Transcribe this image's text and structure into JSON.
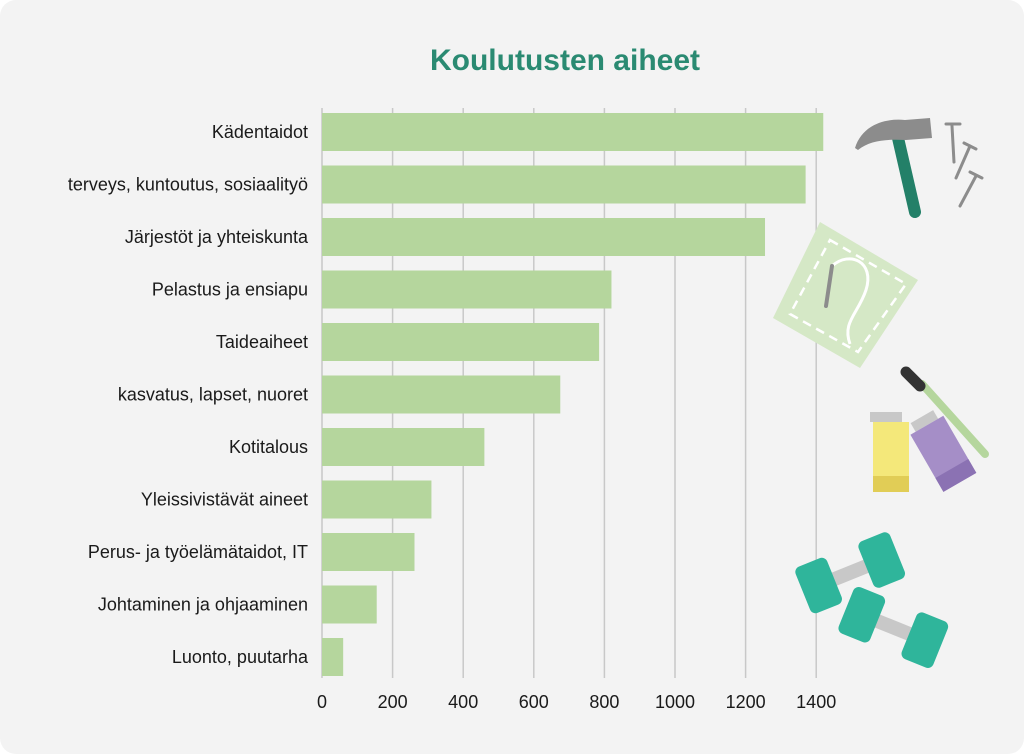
{
  "colors": {
    "background": "#f3f3f3",
    "bar": "#b5d69d",
    "title": "#2a8a72",
    "grid": "#c8c8c8",
    "accent_green": "#2fb59b",
    "hammer_handle": "#238068",
    "hammer_head": "#8c8c8c"
  },
  "decorations": [
    "hammer-icon",
    "nails-icon",
    "fabric-patch-icon",
    "paint-brush-icon",
    "paint-tubes-icon",
    "dumbbells-icon"
  ],
  "chart_data": {
    "type": "bar",
    "orientation": "horizontal",
    "title": "Koulutusten aiheet",
    "categories": [
      "Kädentaidot",
      "terveys, kuntoutus, sosiaalityö",
      "Järjestöt ja yhteiskunta",
      "Pelastus ja ensiapu",
      "Taideaiheet",
      "kasvatus, lapset, nuoret",
      "Kotitalous",
      "Yleissivistävät aineet",
      "Perus- ja työelämätaidot, IT",
      "Johtaminen ja ohjaaminen",
      "Luonto, puutarha"
    ],
    "values": [
      1420,
      1370,
      1255,
      820,
      785,
      675,
      460,
      310,
      262,
      155,
      60
    ],
    "xlim": [
      0,
      1450
    ],
    "xticks": [
      0,
      200,
      400,
      600,
      800,
      1000,
      1200,
      1400
    ],
    "xlabel": "",
    "ylabel": "",
    "grid": true
  }
}
